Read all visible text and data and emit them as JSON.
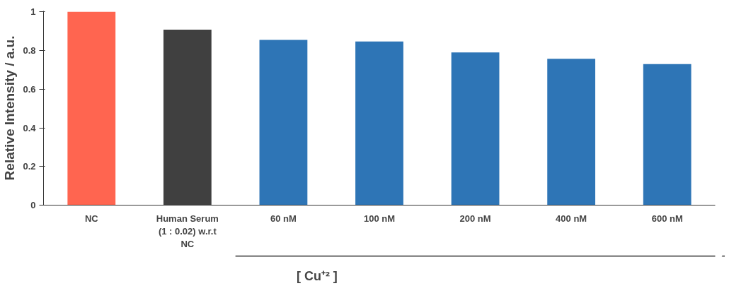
{
  "chart_data": {
    "type": "bar",
    "ylabel": "Relative Intensity / a.u.",
    "categories": [
      "NC",
      "Human Serum\n(1 : 0.02) w.r.t\nNC",
      "60 nM",
      "100 nM",
      "200 nM",
      "400 nM",
      "600 nM"
    ],
    "values": [
      1,
      0.908,
      0.855,
      0.847,
      0.79,
      0.757,
      0.73
    ],
    "colors": [
      "#ff6550",
      "#404040",
      "#2e75b6",
      "#2e75b6",
      "#2e75b6",
      "#2e75b6",
      "#2e75b6"
    ],
    "ylim": [
      0,
      1
    ],
    "yticks": [
      0,
      0.2,
      0.4,
      0.6,
      0.8,
      1
    ],
    "grid": false,
    "annotations": [
      "[ Cu⁺² ]"
    ]
  }
}
